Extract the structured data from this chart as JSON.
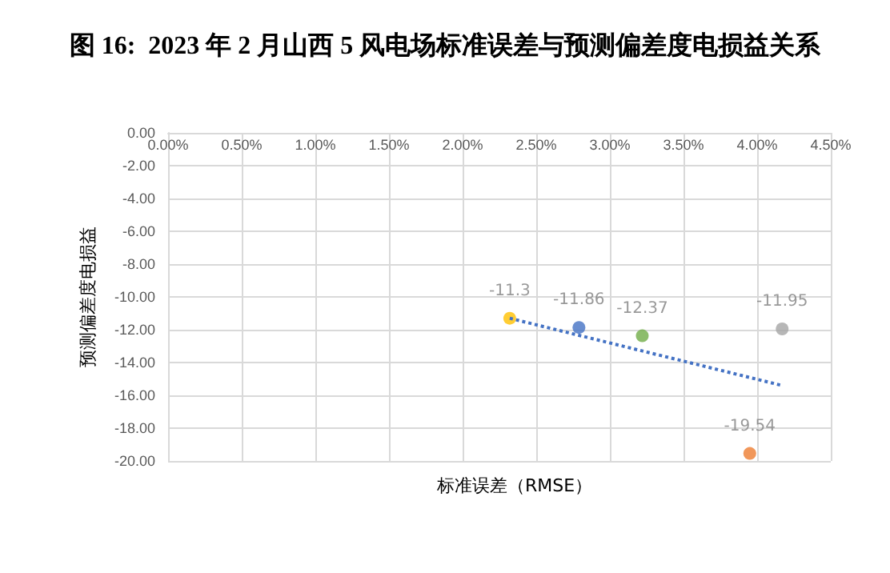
{
  "chart_data": {
    "type": "scatter",
    "title": "图 16:  2023 年 2 月山西 5 风电场标准误差与预测偏差度电损益关系",
    "xlabel": "标准误差（RMSE）",
    "ylabel": "预测偏差度电损益",
    "xlim": [
      0,
      4.5
    ],
    "xticks": [
      {
        "value": 0,
        "label": "0.00%"
      },
      {
        "value": 0.5,
        "label": "0.50%"
      },
      {
        "value": 1,
        "label": "1.00%"
      },
      {
        "value": 1.5,
        "label": "1.50%"
      },
      {
        "value": 2,
        "label": "2.00%"
      },
      {
        "value": 2.5,
        "label": "2.50%"
      },
      {
        "value": 3,
        "label": "3.00%"
      },
      {
        "value": 3.5,
        "label": "3.50%"
      },
      {
        "value": 4,
        "label": "4.00%"
      },
      {
        "value": 4.5,
        "label": "4.50%"
      }
    ],
    "ylim": [
      -20,
      0
    ],
    "yticks": [
      {
        "value": 0,
        "label": "0.00"
      },
      {
        "value": -2,
        "label": "-2.00"
      },
      {
        "value": -4,
        "label": "-4.00"
      },
      {
        "value": -6,
        "label": "-6.00"
      },
      {
        "value": -8,
        "label": "-8.00"
      },
      {
        "value": -10,
        "label": "-10.00"
      },
      {
        "value": -12,
        "label": "-12.00"
      },
      {
        "value": -14,
        "label": "-14.00"
      },
      {
        "value": -16,
        "label": "-16.00"
      },
      {
        "value": -18,
        "label": "-18.00"
      },
      {
        "value": -20,
        "label": "-20.00"
      }
    ],
    "grid": true,
    "marker": "circle",
    "series": [
      {
        "x": [
          2.32,
          2.79,
          3.22,
          3.95,
          4.17
        ],
        "values": [
          -11.3,
          -11.86,
          -12.37,
          -19.54,
          -11.95
        ],
        "value_labels": [
          "-11.3",
          "-11.86",
          "-12.37",
          "-19.54",
          "-11.95"
        ],
        "colors": [
          "#ffc000",
          "#4472c4",
          "#70ad47",
          "#ed7d31",
          "#a5a5a5"
        ]
      },
      {
        "type": "line",
        "x": [
          2.32,
          4.17
        ],
        "values": [
          -11.3,
          -15.4
        ],
        "color": "#4472c4",
        "line_style": "dotted",
        "marker": "none"
      }
    ]
  }
}
